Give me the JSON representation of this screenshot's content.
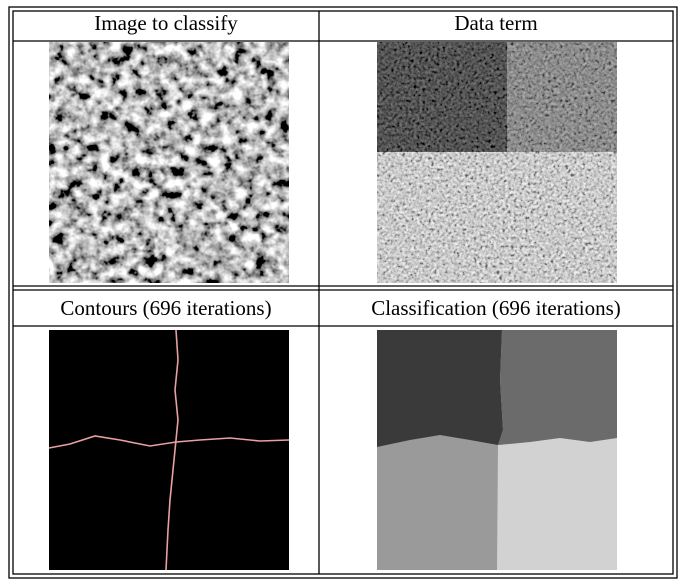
{
  "cells": [
    [
      "Image to classify",
      "Data term"
    ],
    [
      "Contours (696 iterations)",
      "Classification (696 iterations)"
    ]
  ]
}
